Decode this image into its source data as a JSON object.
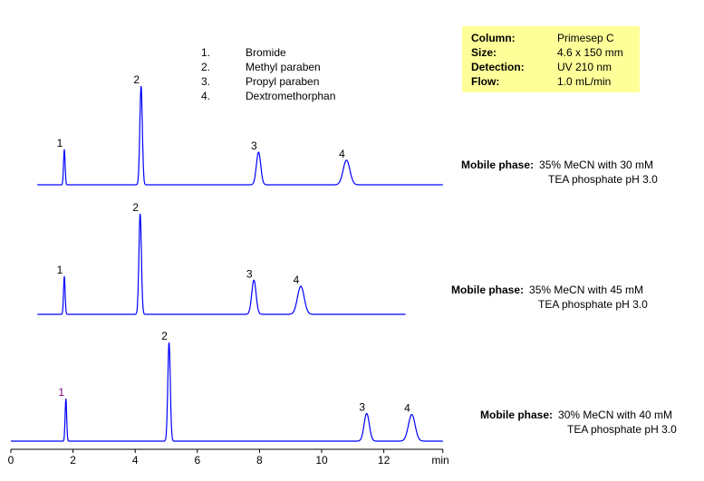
{
  "info_box": [
    {
      "key": "Column:",
      "value": "Primesep C"
    },
    {
      "key": "Size:",
      "value": "4.6 x 150 mm"
    },
    {
      "key": "Detection:",
      "value": "UV 210 nm"
    },
    {
      "key": "Flow:",
      "value": "1.0 mL/min"
    }
  ],
  "legend": [
    {
      "num": "1.",
      "name": "Bromide"
    },
    {
      "num": "2.",
      "name": "Methyl paraben"
    },
    {
      "num": "3.",
      "name": "Propyl paraben"
    },
    {
      "num": "4.",
      "name": "Dextromethorphan"
    }
  ],
  "chart_data": {
    "type": "line",
    "xlabel": "min",
    "xlim": [
      0,
      13.9
    ],
    "xticks": [
      "0",
      "2",
      "4",
      "6",
      "8",
      "10",
      "12"
    ],
    "line_color": "#0000ff",
    "traces": [
      {
        "mobile_phase_label": "Mobile phase:",
        "mobile_phase_line1": "35% MeCN with 30 mM",
        "mobile_phase_line2": "TEA phosphate pH 3.0",
        "x_range": [
          0.85,
          13.9
        ],
        "peaks": [
          {
            "label": "1",
            "rt": 1.72,
            "height": 0.36
          },
          {
            "label": "2",
            "rt": 4.19,
            "height": 1.0
          },
          {
            "label": "3",
            "rt": 7.97,
            "height": 0.33
          },
          {
            "label": "4",
            "rt": 10.8,
            "height": 0.25
          }
        ]
      },
      {
        "mobile_phase_label": "Mobile phase:",
        "mobile_phase_line1": "35% MeCN with 45 mM",
        "mobile_phase_line2": "TEA phosphate pH 3.0",
        "x_range": [
          0.85,
          12.7
        ],
        "peaks": [
          {
            "label": "1",
            "rt": 1.72,
            "height": 0.38
          },
          {
            "label": "2",
            "rt": 4.16,
            "height": 1.0
          },
          {
            "label": "3",
            "rt": 7.82,
            "height": 0.34
          },
          {
            "label": "4",
            "rt": 9.33,
            "height": 0.28
          }
        ]
      },
      {
        "mobile_phase_label": "Mobile phase:",
        "mobile_phase_line1": "30% MeCN with 40 mM",
        "mobile_phase_line2": "TEA phosphate pH 3.0",
        "x_range": [
          0.0,
          13.9
        ],
        "peaks": [
          {
            "label": "1",
            "rt": 1.77,
            "height": 0.43
          },
          {
            "label": "2",
            "rt": 5.09,
            "height": 1.0
          },
          {
            "label": "3",
            "rt": 11.45,
            "height": 0.28
          },
          {
            "label": "4",
            "rt": 12.9,
            "height": 0.27
          }
        ]
      }
    ]
  }
}
